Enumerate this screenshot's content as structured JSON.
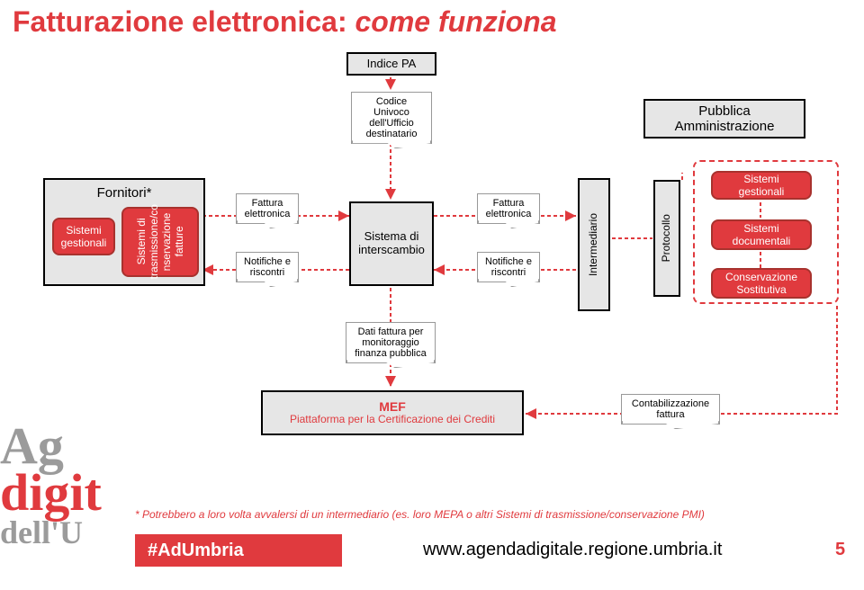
{
  "colors": {
    "red": "#e03a3e",
    "darkred": "#a8322e",
    "grey": "#e6e6e6",
    "black": "#000000",
    "dashRed": "#e03a3e"
  },
  "title": {
    "part1": "Fatturazione elettronica: ",
    "part2": "come funziona",
    "color": "#e03a3e",
    "fontsize": 32
  },
  "boxes": {
    "indice_pa": "Indice PA",
    "codice": "Codice Univoco\ndell'Ufficio\ndestinatario",
    "pubblica_amm": "Pubblica\nAmministrazione",
    "fornitori": "Fornitori*",
    "sistema_interscambio": "Sistema di\ninterscambio",
    "intermediario": "Intermediario",
    "protocollo": "Protocollo",
    "mef": "MEF\nPiattaforma per la Certificazione dei Crediti"
  },
  "red_boxes": {
    "sistemi_gestionali_left": "Sistemi\ngestionali",
    "sistemi_trasm": "Sistemi di\ntrasmissione/co\nnservazione\nfatture",
    "sistemi_gestionali_right": "Sistemi\ngestionali",
    "sistemi_documentali": "Sistemi\ndocumentali",
    "conservazione": "Conservazione\nSostitutiva"
  },
  "tabs": {
    "fattura_elettronica_l": "Fattura\nelettronica",
    "notifiche_l": "Notifiche e\nriscontri",
    "fattura_elettronica_r": "Fattura\nelettronica",
    "notifiche_r": "Notifiche e\nriscontri",
    "dati_fattura": "Dati fattura per\nmonitoraggio\nfinanza pubblica",
    "contabilizzazione": "Contabilizzazione\nfattura"
  },
  "logo": {
    "line1": "Ag",
    "line2": "digit",
    "line3": "dell'U",
    "color_grey_text": "#bfbfbf"
  },
  "footnote": "* Potrebbero a loro volta avvalersi di un intermediario (es. loro MEPA o altri Sistemi di trasmissione/conservazione PMI)",
  "footer": {
    "hash": "#AdUmbria",
    "url": "www.agendadigitale.regione.umbria.it",
    "page": "5"
  }
}
